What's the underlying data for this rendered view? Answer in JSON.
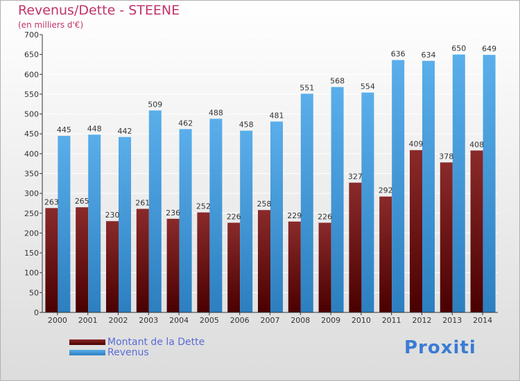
{
  "chart_data": {
    "type": "bar",
    "title": "Revenus/Dette - STEENE",
    "subtitle": "(en milliers d'€)",
    "categories": [
      "2000",
      "2001",
      "2002",
      "2003",
      "2004",
      "2005",
      "2006",
      "2007",
      "2008",
      "2009",
      "2010",
      "2011",
      "2012",
      "2013",
      "2014"
    ],
    "series": [
      {
        "name": "Montant de la Dette",
        "color": "#7a1a1a",
        "values": [
          263,
          265,
          230,
          261,
          236,
          252,
          226,
          258,
          229,
          226,
          327,
          292,
          409,
          378,
          408
        ]
      },
      {
        "name": "Revenus",
        "color": "#4a9de0",
        "values": [
          445,
          448,
          442,
          509,
          462,
          488,
          458,
          481,
          551,
          568,
          554,
          636,
          634,
          650,
          649
        ]
      }
    ],
    "ylim": [
      0,
      700
    ],
    "ytick_step": 50,
    "grid": true,
    "legend_position": "bottom-left"
  },
  "logo": {
    "text": "Proxiti"
  }
}
